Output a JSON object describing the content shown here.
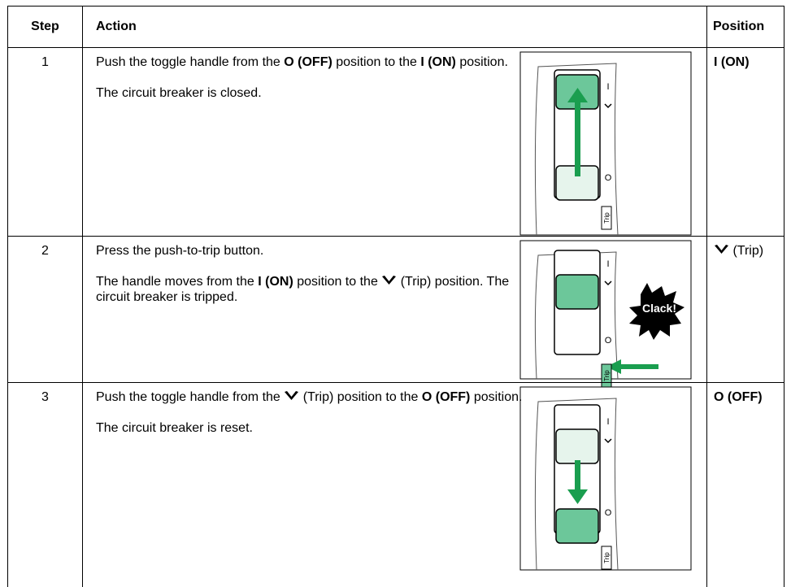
{
  "header": {
    "step": "Step",
    "action": "Action",
    "position": "Position"
  },
  "rows": [
    {
      "step": "1",
      "paragraphs": [
        [
          {
            "text": "Push the toggle handle from the "
          },
          {
            "text": "O (OFF)",
            "bold": true
          },
          {
            "text": " position to the "
          },
          {
            "text": "I (ON)",
            "bold": true
          },
          {
            "text": " position."
          }
        ],
        [
          {
            "text": "The circuit breaker is closed."
          }
        ]
      ],
      "position": [
        {
          "text": "I (ON)",
          "bold": true
        }
      ],
      "illustration": {
        "on_mark": "I",
        "off_mark": "O",
        "trip_label": "Trip"
      }
    },
    {
      "step": "2",
      "paragraphs": [
        [
          {
            "text": "Press the push-to-trip button."
          }
        ],
        [
          {
            "text": "The handle moves from the "
          },
          {
            "text": "I (ON)",
            "bold": true
          },
          {
            "text": " position to the "
          },
          {
            "trip_symbol": true
          },
          {
            "text": " (Trip) position. The circuit breaker is tripped."
          }
        ]
      ],
      "position": [
        {
          "trip_symbol": true
        },
        {
          "text": " (Trip)"
        }
      ],
      "illustration": {
        "on_mark": "I",
        "off_mark": "O",
        "trip_label": "Trip",
        "sound": "Clack!"
      }
    },
    {
      "step": "3",
      "paragraphs": [
        [
          {
            "text": "Push the toggle handle from the "
          },
          {
            "trip_symbol": true
          },
          {
            "text": " (Trip) position to the "
          },
          {
            "text": "O (OFF)",
            "bold": true
          },
          {
            "text": " position."
          }
        ],
        [
          {
            "text": "The circuit breaker is reset."
          }
        ]
      ],
      "position": [
        {
          "text": "O (OFF)",
          "bold": true
        }
      ],
      "illustration": {
        "on_mark": "I",
        "off_mark": "O",
        "trip_label": "Trip"
      }
    }
  ]
}
